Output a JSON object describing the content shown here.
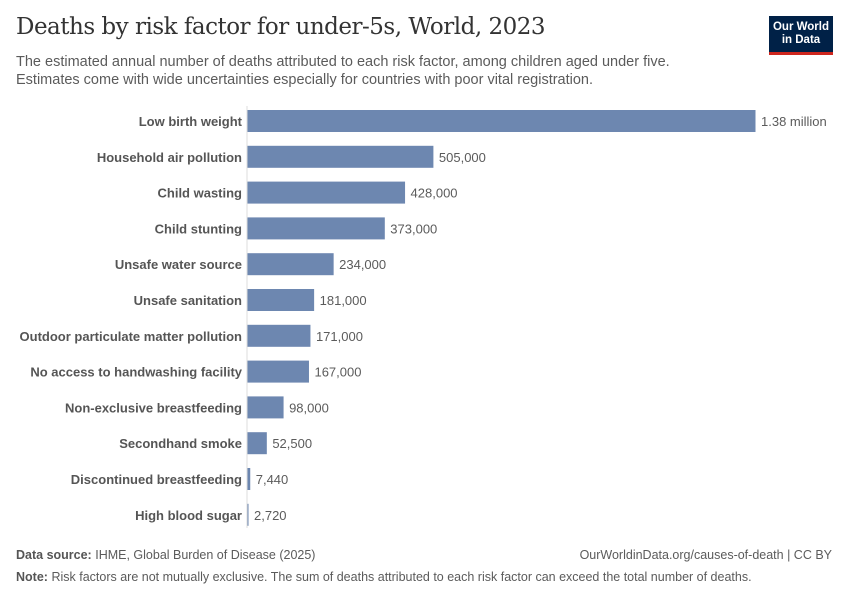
{
  "title": "Deaths by risk factor for under-5s, World, 2023",
  "subtitle": "The estimated annual number of deaths attributed to each risk factor, among children aged under five. Estimates come with wide uncertainties especially for countries with poor vital registration.",
  "logo": {
    "line1": "Our World",
    "line2": "in Data"
  },
  "footer": {
    "source_label": "Data source:",
    "source": "IHME, Global Burden of Disease (2025)",
    "url": "OurWorldinData.org/causes-of-death | CC BY",
    "note_label": "Note:",
    "note": "Risk factors are not mutually exclusive. The sum of deaths attributed to each risk factor can exceed the total number of deaths."
  },
  "chart_data": {
    "type": "bar",
    "orientation": "horizontal",
    "bar_color": "#6d87b0",
    "categories": [
      "Low birth weight",
      "Household air pollution",
      "Child wasting",
      "Child stunting",
      "Unsafe water source",
      "Unsafe sanitation",
      "Outdoor particulate matter pollution",
      "No access to handwashing facility",
      "Non-exclusive breastfeeding",
      "Secondhand smoke",
      "Discontinued breastfeeding",
      "High blood sugar"
    ],
    "values": [
      1380000,
      505000,
      428000,
      373000,
      234000,
      181000,
      171000,
      167000,
      98000,
      52500,
      7440,
      2720
    ],
    "data_labels": [
      "1.38 million",
      "505,000",
      "428,000",
      "373,000",
      "234,000",
      "181,000",
      "171,000",
      "167,000",
      "98,000",
      "52,500",
      "7,440",
      "2,720"
    ],
    "grid": false
  }
}
